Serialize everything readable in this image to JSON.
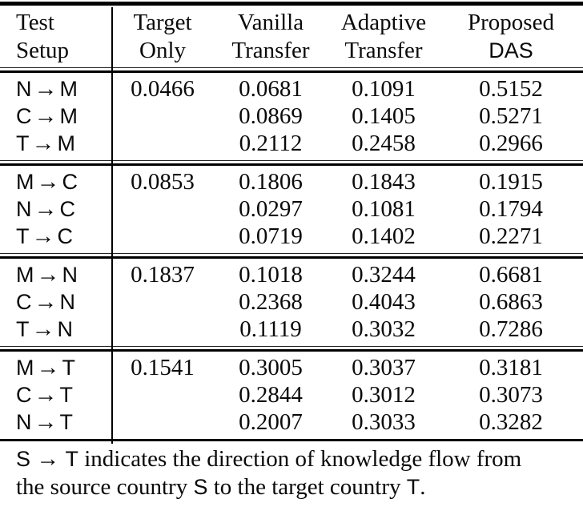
{
  "glyphs": {
    "arrow": "→"
  },
  "table": {
    "header": {
      "test": {
        "line1": "Test",
        "line2": "Setup"
      },
      "target": {
        "line1": "Target",
        "line2": "Only"
      },
      "vanilla": {
        "line1": "Vanilla",
        "line2": "Transfer"
      },
      "adaptive": {
        "line1": "Adaptive",
        "line2": "Transfer"
      },
      "proposed": {
        "line1": "Proposed",
        "line2": "DAS"
      }
    },
    "blocks": [
      {
        "rows": [
          {
            "src": "N",
            "dst": "M",
            "target_only": "0.0466",
            "vanilla": "0.0681",
            "adaptive": "0.1091",
            "das": "0.5152"
          },
          {
            "src": "C",
            "dst": "M",
            "target_only": "",
            "vanilla": "0.0869",
            "adaptive": "0.1405",
            "das": "0.5271"
          },
          {
            "src": "T",
            "dst": "M",
            "target_only": "",
            "vanilla": "0.2112",
            "adaptive": "0.2458",
            "das": "0.2966"
          }
        ]
      },
      {
        "rows": [
          {
            "src": "M",
            "dst": "C",
            "target_only": "0.0853",
            "vanilla": "0.1806",
            "adaptive": "0.1843",
            "das": "0.1915"
          },
          {
            "src": "N",
            "dst": "C",
            "target_only": "",
            "vanilla": "0.0297",
            "adaptive": "0.1081",
            "das": "0.1794"
          },
          {
            "src": "T",
            "dst": "C",
            "target_only": "",
            "vanilla": "0.0719",
            "adaptive": "0.1402",
            "das": "0.2271"
          }
        ]
      },
      {
        "rows": [
          {
            "src": "M",
            "dst": "N",
            "target_only": "0.1837",
            "vanilla": "0.1018",
            "adaptive": "0.3244",
            "das": "0.6681"
          },
          {
            "src": "C",
            "dst": "N",
            "target_only": "",
            "vanilla": "0.2368",
            "adaptive": "0.4043",
            "das": "0.6863"
          },
          {
            "src": "T",
            "dst": "N",
            "target_only": "",
            "vanilla": "0.1119",
            "adaptive": "0.3032",
            "das": "0.7286"
          }
        ]
      },
      {
        "rows": [
          {
            "src": "M",
            "dst": "T",
            "target_only": "0.1541",
            "vanilla": "0.3005",
            "adaptive": "0.3037",
            "das": "0.3181"
          },
          {
            "src": "C",
            "dst": "T",
            "target_only": "",
            "vanilla": "0.2844",
            "adaptive": "0.3012",
            "das": "0.3073"
          },
          {
            "src": "N",
            "dst": "T",
            "target_only": "",
            "vanilla": "0.2007",
            "adaptive": "0.3033",
            "das": "0.3282"
          }
        ]
      }
    ]
  },
  "footnote": {
    "s": "S",
    "t": "T",
    "arrow": "→",
    "line1_text": "indicates the direction of knowledge flow from",
    "line2_pre": "the source country",
    "line2_mid": "to the target country",
    "period": "."
  }
}
